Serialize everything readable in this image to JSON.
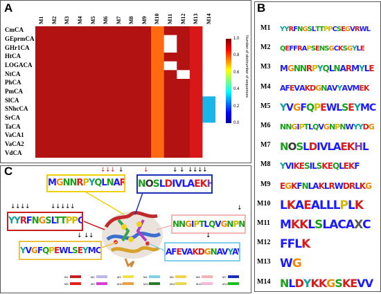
{
  "panels": {
    "a": "A",
    "b": "B",
    "c": "C"
  },
  "heatmap": {
    "columns": [
      "M1",
      "M2",
      "M3",
      "M4",
      "M5",
      "M6",
      "M7",
      "M8",
      "M9",
      "M10",
      "M11",
      "M12",
      "M13",
      "M14"
    ],
    "rows": [
      "CmCA",
      "GEprmCA",
      "GHr1CA",
      "HtCA",
      "LOGACA",
      "NtCA",
      "PhCA",
      "PmCA",
      "SlCA",
      "SNhcCA",
      "SrCA",
      "TaCA",
      "VaCA1",
      "VaCA2",
      "VdCA"
    ]
  },
  "colorbar": {
    "title": "Number of site/number of sequences",
    "ticks": [
      "1.0",
      "0.8",
      "0.6",
      "0.4",
      "0.2",
      "0.0"
    ]
  },
  "chart_data": {
    "type": "heatmap",
    "x": [
      "M1",
      "M2",
      "M3",
      "M4",
      "M5",
      "M6",
      "M7",
      "M8",
      "M9",
      "M10",
      "M11",
      "M12",
      "M13",
      "M14"
    ],
    "y": [
      "CmCA",
      "GEprmCA",
      "GHr1CA",
      "HtCA",
      "LOGACA",
      "NtCA",
      "PhCA",
      "PmCA",
      "SlCA",
      "SNhcCA",
      "SrCA",
      "TaCA",
      "VaCA1",
      "VaCA2",
      "VdCA"
    ],
    "values": [
      [
        1,
        1,
        1,
        1,
        1,
        1,
        1,
        1,
        1,
        0.7,
        1,
        1,
        0.9,
        0
      ],
      [
        1,
        1,
        1,
        1,
        1,
        1,
        1,
        1,
        1,
        0.7,
        0,
        1,
        0.9,
        0
      ],
      [
        1,
        1,
        1,
        1,
        1,
        1,
        1,
        1,
        1,
        0.7,
        0,
        1,
        0.9,
        0
      ],
      [
        1,
        1,
        1,
        1,
        1,
        1,
        1,
        1,
        1,
        0.7,
        1,
        1,
        0.9,
        0
      ],
      [
        1,
        1,
        1,
        1,
        1,
        1,
        1,
        1,
        1,
        0.7,
        0,
        1,
        0.9,
        0
      ],
      [
        1,
        1,
        1,
        1,
        1,
        1,
        1,
        1,
        1,
        0.7,
        1,
        0,
        0.9,
        0
      ],
      [
        1,
        1,
        1,
        1,
        1,
        1,
        1,
        1,
        1,
        0.7,
        1,
        1,
        0.9,
        0
      ],
      [
        1,
        1,
        1,
        1,
        1,
        1,
        1,
        1,
        1,
        0.7,
        1,
        1,
        0.9,
        0
      ],
      [
        1,
        1,
        1,
        1,
        1,
        1,
        1,
        1,
        1,
        0.7,
        1,
        1,
        0.9,
        0.3
      ],
      [
        1,
        1,
        1,
        1,
        1,
        1,
        1,
        1,
        1,
        0.7,
        1,
        1,
        0.9,
        0.3
      ],
      [
        1,
        1,
        1,
        1,
        1,
        1,
        1,
        1,
        1,
        0.7,
        1,
        1,
        0.9,
        0.3
      ],
      [
        1,
        1,
        1,
        1,
        1,
        1,
        1,
        1,
        1,
        0.7,
        1,
        1,
        0.9,
        0
      ],
      [
        1,
        1,
        1,
        1,
        1,
        1,
        1,
        1,
        1,
        0.7,
        1,
        1,
        0.9,
        0
      ],
      [
        1,
        1,
        1,
        1,
        1,
        1,
        1,
        1,
        1,
        0.7,
        1,
        1,
        0.9,
        0
      ],
      [
        1,
        1,
        1,
        1,
        1,
        1,
        1,
        1,
        1,
        0.7,
        1,
        1,
        0.9,
        0
      ]
    ],
    "zlim": [
      0,
      1
    ],
    "colorscale": "jet"
  },
  "motifs": [
    {
      "label": "M1",
      "logo": "YYRFNGSLTTPPCSEGVRWL"
    },
    {
      "label": "M2",
      "logo": "QEFFRAPSENSGCKSGYLE"
    },
    {
      "label": "M3",
      "logo": "MGNNRPYQLNARMYLE"
    },
    {
      "label": "M4",
      "logo": "AFEVAKDGNAVYAVMEK"
    },
    {
      "label": "M5",
      "logo": "YVGFQPEWLSEYMC"
    },
    {
      "label": "M6",
      "logo": "NNGIPTLQVGNPNWYYDG"
    },
    {
      "label": "M7",
      "logo": "NOSLDIVLAEKHL"
    },
    {
      "label": "M8",
      "logo": "YVIKESILSKEQLEKF"
    },
    {
      "label": "M9",
      "logo": "EGKFNLAKLRWDRLKG"
    },
    {
      "label": "M10",
      "logo": "LKAEALLLPLK"
    },
    {
      "label": "M11",
      "logo": "MKKLSLACAXC"
    },
    {
      "label": "M12",
      "logo": "FFLK"
    },
    {
      "label": "M13",
      "logo": "WG"
    },
    {
      "label": "M14",
      "logo": "NLDYKKGSKEVV"
    }
  ],
  "panel_c": {
    "boxes": [
      {
        "id": "m3",
        "logo": "MGNNRPYQLNARMYLE"
      },
      {
        "id": "m7",
        "logo": "NOSLDIVLAEKHL"
      },
      {
        "id": "m1",
        "logo": "YYRFNGSLTTPPCSEGVRWL"
      },
      {
        "id": "m6",
        "logo": "NNGIPTLQVGNPNWYYDG"
      },
      {
        "id": "m5",
        "logo": "YVGFQPEWLSEYMC"
      },
      {
        "id": "m4",
        "logo": "AFEVAKDGNAVYAVMEK"
      }
    ],
    "legend": [
      "M1",
      "M2",
      "M3",
      "M4",
      "M5",
      "M6",
      "M7",
      "M8",
      "M9",
      "M10",
      "M11",
      "M12",
      "M13",
      "M14"
    ],
    "legend_colors": [
      "#c81e1e",
      "#b7b7e8",
      "#f0e24b",
      "#7fd0ea",
      "#f7d34c",
      "#f5b4b4",
      "#1c2fb8",
      "#e81e1e",
      "#d93bd9",
      "#e8a040",
      "#2c7a2c",
      "#e8d84e",
      "#f4b7d8",
      "#18c018"
    ]
  },
  "letter_colors": {
    "A": "#1a1aff",
    "C": "#1a1aff",
    "D": "#d81b1b",
    "E": "#d81b1b",
    "F": "#1a1aff",
    "G": "#f08a00",
    "H": "#7a3fb0",
    "I": "#1a1aff",
    "K": "#d81b1b",
    "L": "#1a1aff",
    "M": "#1a1aff",
    "N": "#19a119",
    "P": "#d4b800",
    "Q": "#19a119",
    "R": "#d81b1b",
    "S": "#19a119",
    "T": "#19a119",
    "V": "#1a1aff",
    "W": "#1a1aff",
    "X": "#555555",
    "Y": "#0fa0a0"
  }
}
